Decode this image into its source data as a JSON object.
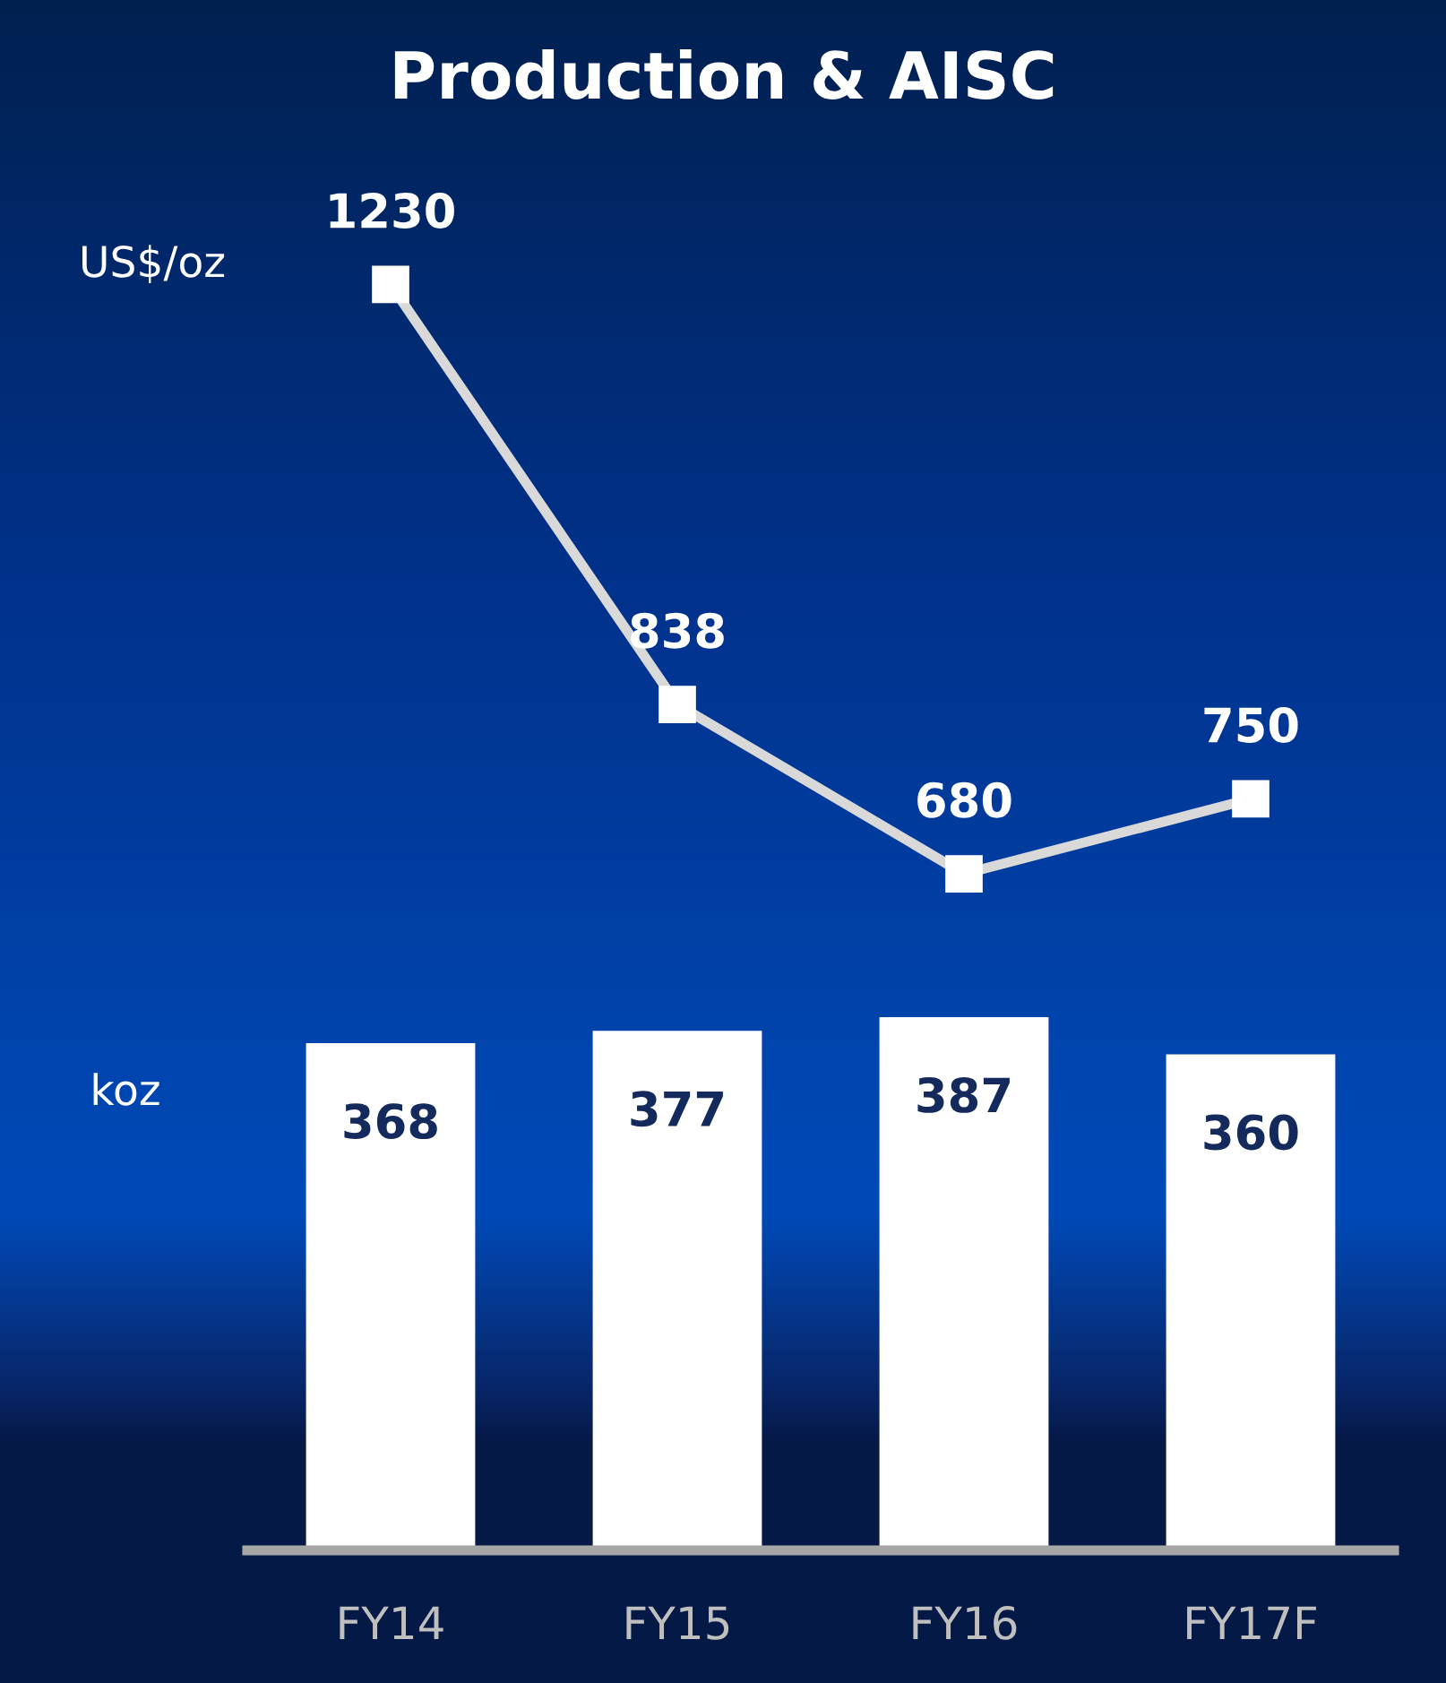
{
  "chart_data": [
    {
      "type": "line",
      "title": "Production & AISC",
      "ylabel": "US$/oz",
      "categories": [
        null,
        null,
        null,
        null
      ],
      "tick_labels": false,
      "series": [
        {
          "color": "#d9d9d9",
          "marker": "square",
          "line_style": "solid",
          "values": [
            1230,
            838,
            680,
            750
          ]
        }
      ],
      "data_labels": true,
      "grid": false,
      "legend": false
    },
    {
      "type": "bar",
      "ylabel": "koz",
      "categories": [
        "FY14",
        "FY15",
        "FY16",
        "FY17F"
      ],
      "tick_labels": "x",
      "series": [
        {
          "color": "#ffffff",
          "values": [
            368,
            377,
            387,
            360
          ]
        }
      ],
      "data_labels": true,
      "grid": false,
      "legend": false
    }
  ]
}
